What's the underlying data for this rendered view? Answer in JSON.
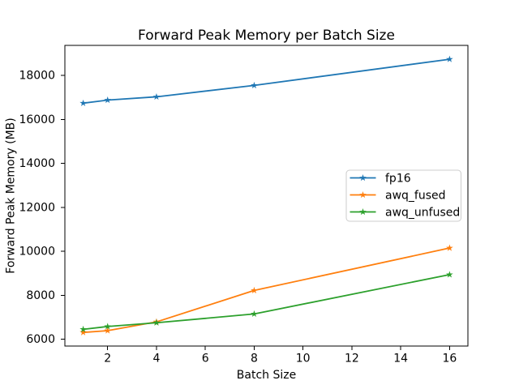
{
  "chart_data": {
    "type": "line",
    "title": "Forward Peak Memory per Batch Size",
    "xlabel": "Batch Size",
    "ylabel": "Forward Peak Memory (MB)",
    "x": [
      1,
      2,
      4,
      8,
      16
    ],
    "series": [
      {
        "name": "fp16",
        "color": "#1f77b4",
        "values": [
          16740,
          16880,
          17030,
          17550,
          18740
        ]
      },
      {
        "name": "awq_fused",
        "color": "#ff7f0e",
        "values": [
          6310,
          6390,
          6790,
          8220,
          10150
        ]
      },
      {
        "name": "awq_unfused",
        "color": "#2ca02c",
        "values": [
          6450,
          6580,
          6750,
          7150,
          8940
        ]
      }
    ],
    "xticks": [
      2,
      4,
      6,
      8,
      10,
      12,
      14,
      16
    ],
    "yticks": [
      6000,
      8000,
      10000,
      12000,
      14000,
      16000,
      18000
    ],
    "xlim": [
      0.25,
      16.75
    ],
    "ylim": [
      5690,
      19370
    ],
    "marker": "star",
    "grid": false,
    "legend_position": "center right"
  }
}
